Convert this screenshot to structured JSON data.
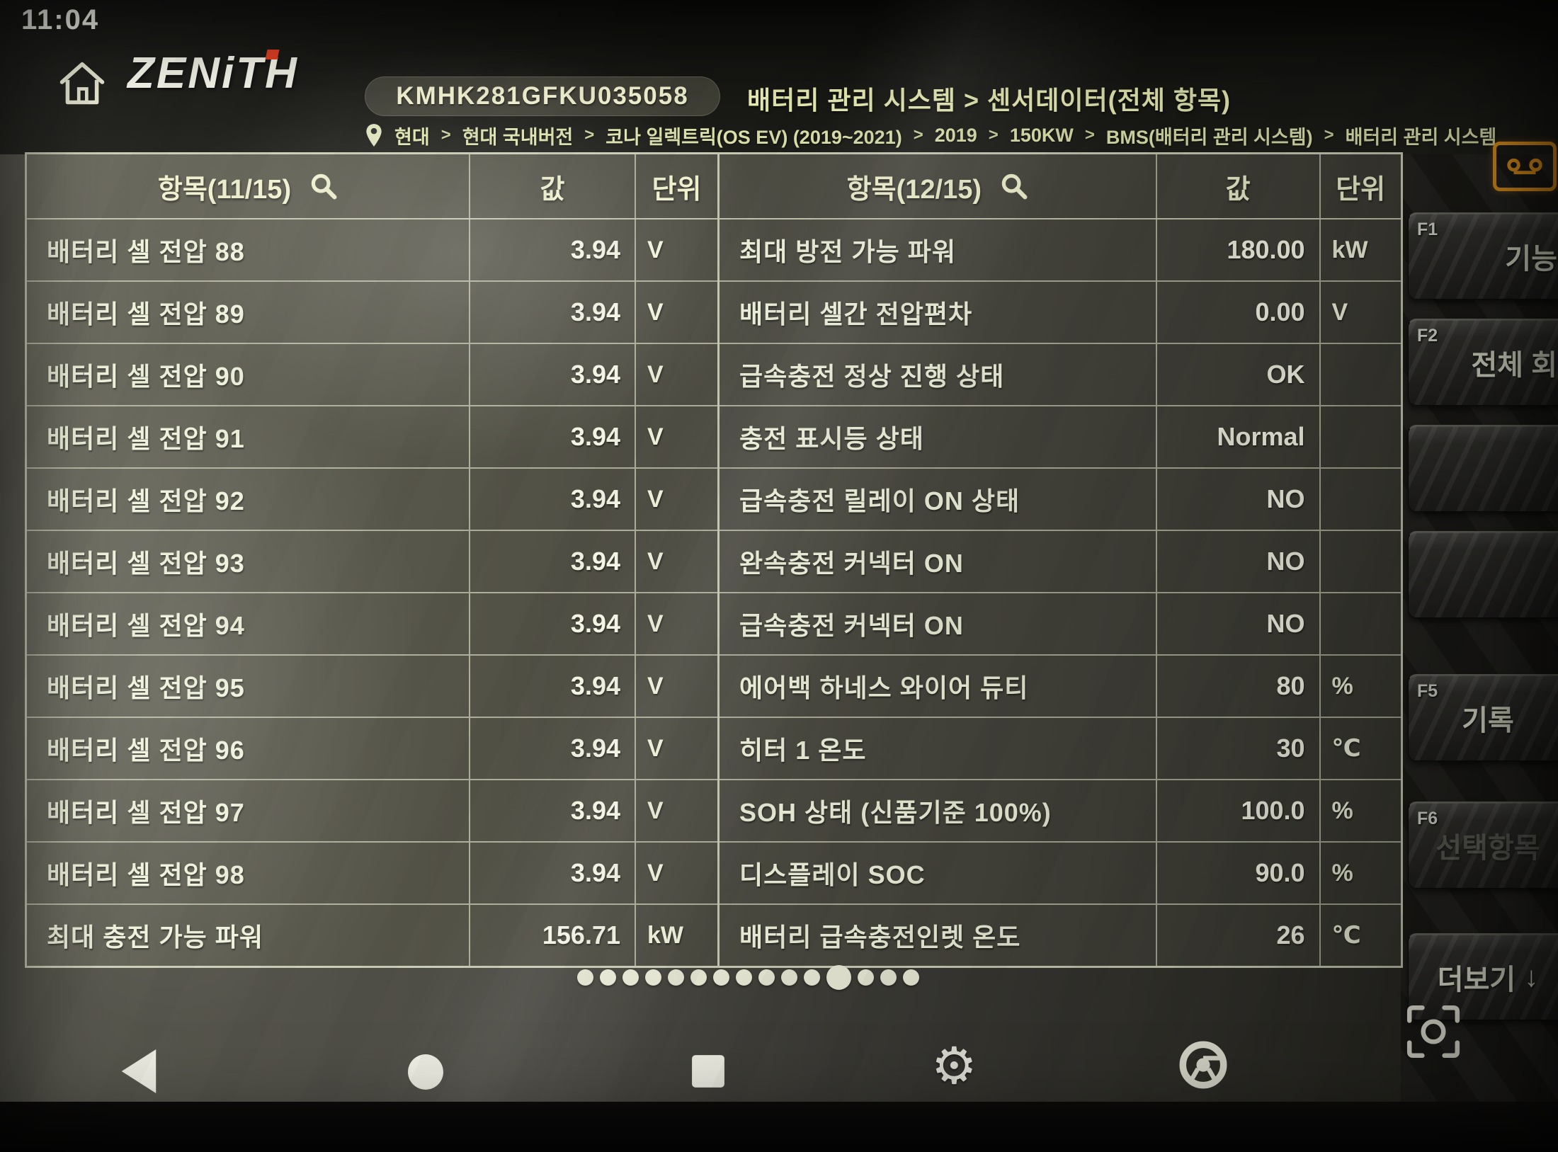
{
  "status_bar": {
    "time": "11:04"
  },
  "header": {
    "logo": "ZENiTH",
    "vin": "KMHK281GFKU035058",
    "title": "배터리 관리 시스템 > 센서데이터(전체 항목)"
  },
  "breadcrumb": {
    "separator": ">",
    "items": [
      "현대",
      "현대 국내버전",
      "코나 일렉트릭(OS EV) (2019~2021)",
      "2019",
      "150KW",
      "BMS(배터리 관리 시스템)",
      "배터리 관리 시스템"
    ]
  },
  "left_table": {
    "header": {
      "item": "항목(11/15)",
      "value": "값",
      "unit": "단위"
    },
    "rows": [
      {
        "item": "배터리 셀 전압 88",
        "value": "3.94",
        "unit": "V"
      },
      {
        "item": "배터리 셀 전압 89",
        "value": "3.94",
        "unit": "V"
      },
      {
        "item": "배터리 셀 전압 90",
        "value": "3.94",
        "unit": "V"
      },
      {
        "item": "배터리 셀 전압 91",
        "value": "3.94",
        "unit": "V"
      },
      {
        "item": "배터리 셀 전압 92",
        "value": "3.94",
        "unit": "V"
      },
      {
        "item": "배터리 셀 전압 93",
        "value": "3.94",
        "unit": "V"
      },
      {
        "item": "배터리 셀 전압 94",
        "value": "3.94",
        "unit": "V"
      },
      {
        "item": "배터리 셀 전압 95",
        "value": "3.94",
        "unit": "V"
      },
      {
        "item": "배터리 셀 전압 96",
        "value": "3.94",
        "unit": "V"
      },
      {
        "item": "배터리 셀 전압 97",
        "value": "3.94",
        "unit": "V"
      },
      {
        "item": "배터리 셀 전압 98",
        "value": "3.94",
        "unit": "V"
      },
      {
        "item": "최대 충전 가능 파워",
        "value": "156.71",
        "unit": "kW"
      }
    ]
  },
  "right_table": {
    "header": {
      "item": "항목(12/15)",
      "value": "값",
      "unit": "단위"
    },
    "rows": [
      {
        "item": "최대 방전 가능 파워",
        "value": "180.00",
        "unit": "kW"
      },
      {
        "item": "배터리 셀간 전압편차",
        "value": "0.00",
        "unit": "V"
      },
      {
        "item": "급속충전 정상 진행 상태",
        "value": "OK",
        "unit": ""
      },
      {
        "item": "충전 표시등 상태",
        "value": "Normal",
        "unit": ""
      },
      {
        "item": "급속충전 릴레이 ON 상태",
        "value": "NO",
        "unit": ""
      },
      {
        "item": "완속충전 커넥터 ON",
        "value": "NO",
        "unit": ""
      },
      {
        "item": "급속충전 커넥터 ON",
        "value": "NO",
        "unit": ""
      },
      {
        "item": "에어백 하네스 와이어 듀티",
        "value": "80",
        "unit": "%"
      },
      {
        "item": "히터 1 온도",
        "value": "30",
        "unit": "℃"
      },
      {
        "item": "SOH 상태 (신품기준 100%)",
        "value": "100.0",
        "unit": "%"
      },
      {
        "item": "디스플레이 SOC",
        "value": "90.0",
        "unit": "%"
      },
      {
        "item": "배터리 급속충전인렛 온도",
        "value": "26",
        "unit": "℃"
      }
    ]
  },
  "function_panel": {
    "buttons": [
      {
        "key": "F1",
        "label": "기능"
      },
      {
        "key": "F2",
        "label": "전체 회"
      },
      {
        "key": "",
        "label": ""
      },
      {
        "key": "",
        "label": ""
      },
      {
        "key": "F5",
        "label": "기록"
      },
      {
        "key": "F6",
        "label": "선택항목"
      },
      {
        "key": "",
        "label": "더보기",
        "arrow": "↓"
      }
    ]
  },
  "pagination": {
    "total": 15,
    "current": 12
  },
  "colors": {
    "accent_orange": "#e8961b",
    "table_text": "#eef1da",
    "grid_line": "#dee2c8",
    "title_yellow": "#e9edb4"
  }
}
